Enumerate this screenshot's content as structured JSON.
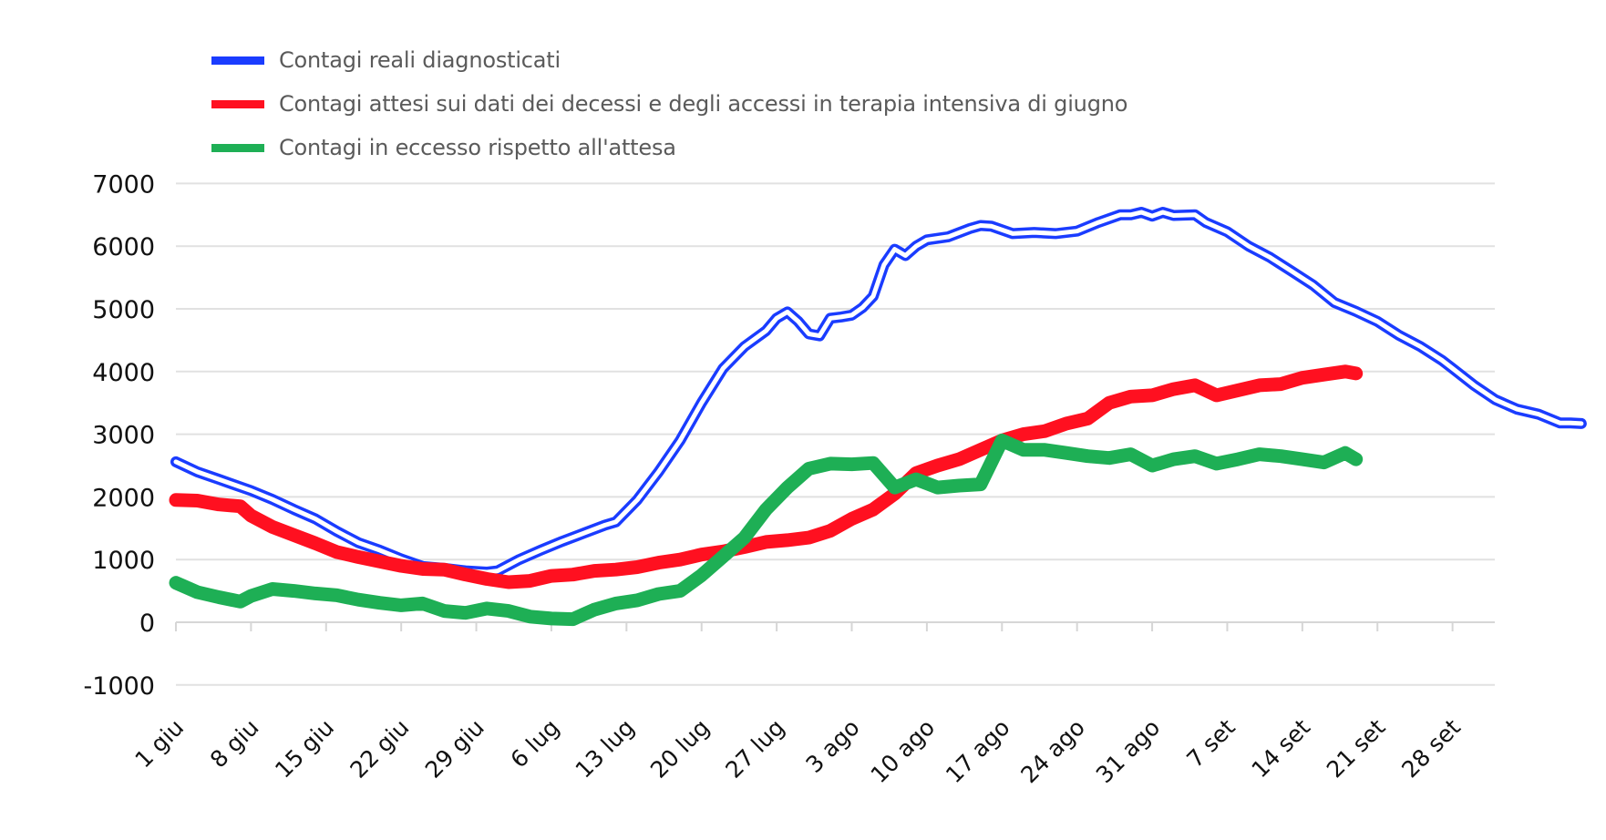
{
  "chart_data": {
    "type": "line",
    "title": "",
    "xlabel": "",
    "ylabel": "",
    "ylim": [
      -1000,
      7000
    ],
    "yticks": [
      7000,
      6000,
      5000,
      4000,
      3000,
      2000,
      1000,
      0,
      -1000
    ],
    "ytick_labels": [
      "7000",
      "6000",
      "5000",
      "4000",
      "3000",
      "2000",
      "1000",
      "0",
      "-1000"
    ],
    "x_unit": "days since 1 giu",
    "xlim_days": [
      0,
      123
    ],
    "xticks_days": [
      0,
      7,
      14,
      21,
      28,
      35,
      42,
      49,
      56,
      63,
      70,
      77,
      84,
      91,
      98,
      105,
      112,
      119
    ],
    "xtick_labels": [
      "1 giu",
      "8 giu",
      "15 giu",
      "22 giu",
      "29 giu",
      "6 lug",
      "13 lug",
      "20 lug",
      "27 lug",
      "3 ago",
      "10 ago",
      "17 ago",
      "24 ago",
      "31 ago",
      "7 set",
      "14 set",
      "21 set",
      "28 set"
    ],
    "grid": true,
    "legend_position": "top-left",
    "series": [
      {
        "name": "Contagi reali diagnosticati",
        "color": "#1a3cff",
        "style": "double",
        "x": [
          0,
          2,
          4,
          6,
          7,
          9,
          11,
          13,
          15,
          17,
          19,
          21,
          23,
          25,
          27,
          29,
          30,
          32,
          34,
          36,
          38,
          40,
          41,
          43,
          45,
          47,
          49,
          51,
          53,
          55,
          56,
          57,
          58,
          59,
          60,
          61,
          62,
          63,
          64,
          65,
          66,
          67,
          68,
          69,
          70,
          72,
          74,
          75,
          76,
          78,
          80,
          82,
          84,
          86,
          88,
          89,
          90,
          91,
          92,
          93,
          95,
          96,
          98,
          100,
          102,
          104,
          106,
          108,
          110,
          112,
          114,
          116,
          118,
          119,
          121,
          123,
          125,
          127,
          129,
          130,
          131
        ],
        "values": [
          2560,
          2400,
          2280,
          2160,
          2100,
          1960,
          1800,
          1650,
          1450,
          1270,
          1150,
          1010,
          890,
          860,
          820,
          800,
          820,
          1000,
          1150,
          1290,
          1420,
          1550,
          1600,
          1950,
          2400,
          2900,
          3500,
          4050,
          4400,
          4650,
          4850,
          4950,
          4800,
          4600,
          4570,
          4850,
          4870,
          4900,
          5020,
          5200,
          5700,
          5950,
          5850,
          6000,
          6100,
          6150,
          6280,
          6330,
          6320,
          6200,
          6220,
          6200,
          6240,
          6380,
          6500,
          6500,
          6540,
          6480,
          6540,
          6490,
          6500,
          6380,
          6230,
          6000,
          5820,
          5600,
          5380,
          5100,
          4960,
          4800,
          4580,
          4400,
          4180,
          4050,
          3780,
          3550,
          3400,
          3320,
          3180,
          3180,
          3170
        ]
      },
      {
        "name": "Contagi attesi sui dati dei decessi e degli accessi in terapia intensiva di giugno",
        "color": "#ff1020",
        "style": "thick",
        "x": [
          0,
          2,
          4,
          6,
          7,
          9,
          11,
          13,
          15,
          17,
          19,
          21,
          23,
          25,
          27,
          29,
          31,
          33,
          35,
          37,
          39,
          41,
          43,
          45,
          47,
          49,
          51,
          53,
          55,
          57,
          59,
          61,
          63,
          65,
          67,
          69,
          71,
          73,
          75,
          77,
          79,
          81,
          83,
          85,
          87,
          89,
          91,
          93,
          95,
          97,
          99,
          101,
          103,
          105,
          107,
          109,
          110
        ],
        "values": [
          1950,
          1940,
          1880,
          1850,
          1700,
          1520,
          1390,
          1260,
          1120,
          1040,
          970,
          900,
          850,
          840,
          760,
          690,
          640,
          660,
          740,
          760,
          820,
          840,
          880,
          950,
          1000,
          1080,
          1130,
          1200,
          1280,
          1310,
          1350,
          1460,
          1650,
          1800,
          2050,
          2380,
          2500,
          2600,
          2750,
          2900,
          3000,
          3050,
          3170,
          3250,
          3500,
          3600,
          3620,
          3720,
          3780,
          3620,
          3700,
          3780,
          3800,
          3900,
          3950,
          4000,
          3970
        ]
      },
      {
        "name": "Contagi in eccesso rispetto all'attesa",
        "color": "#1eaf55",
        "style": "thick",
        "x": [
          0,
          2,
          4,
          6,
          7,
          9,
          11,
          13,
          15,
          17,
          19,
          21,
          23,
          25,
          27,
          29,
          31,
          33,
          35,
          37,
          39,
          41,
          43,
          45,
          47,
          49,
          51,
          53,
          55,
          57,
          59,
          61,
          63,
          65,
          67,
          69,
          71,
          73,
          75,
          77,
          79,
          81,
          83,
          85,
          87,
          89,
          91,
          93,
          95,
          97,
          99,
          101,
          103,
          105,
          107,
          109,
          110
        ],
        "values": [
          630,
          480,
          400,
          330,
          420,
          530,
          500,
          460,
          430,
          360,
          310,
          270,
          300,
          180,
          150,
          220,
          180,
          90,
          60,
          50,
          200,
          300,
          350,
          450,
          500,
          750,
          1050,
          1350,
          1800,
          2150,
          2450,
          2530,
          2520,
          2540,
          2150,
          2280,
          2150,
          2180,
          2200,
          2900,
          2750,
          2750,
          2700,
          2650,
          2620,
          2680,
          2500,
          2600,
          2650,
          2530,
          2600,
          2680,
          2650,
          2600,
          2550,
          2700,
          2600
        ]
      }
    ]
  }
}
